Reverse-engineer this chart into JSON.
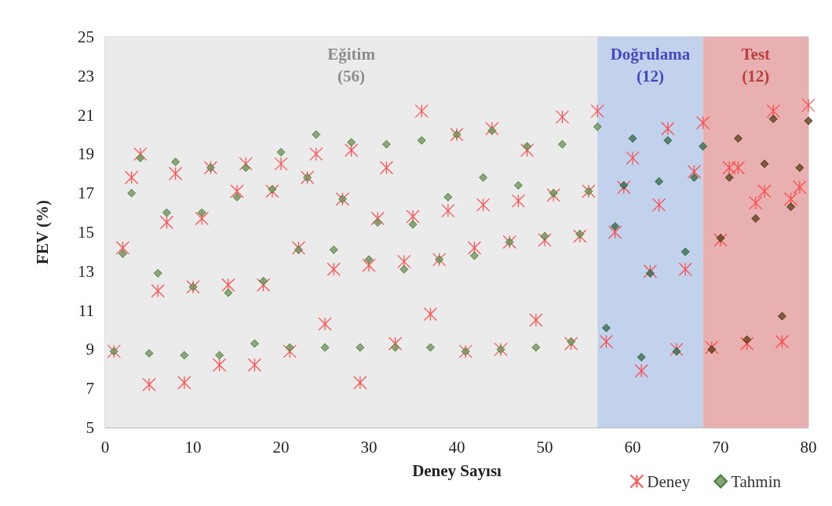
{
  "chart_data": {
    "type": "scatter",
    "xlabel": "Deney Sayısı",
    "ylabel": "FEV (%)",
    "x": [
      1,
      2,
      3,
      4,
      5,
      6,
      7,
      8,
      9,
      10,
      11,
      12,
      13,
      14,
      15,
      16,
      17,
      18,
      19,
      20,
      21,
      22,
      23,
      24,
      25,
      26,
      27,
      28,
      29,
      30,
      31,
      32,
      33,
      34,
      35,
      36,
      37,
      38,
      39,
      40,
      41,
      42,
      43,
      44,
      45,
      46,
      47,
      48,
      49,
      50,
      51,
      52,
      53,
      54,
      55,
      56,
      57,
      58,
      59,
      60,
      61,
      62,
      63,
      64,
      65,
      66,
      67,
      68,
      69,
      70,
      71,
      72,
      73,
      74,
      75,
      76,
      77,
      78,
      79,
      80
    ],
    "series": [
      {
        "name": "Deney",
        "color": "#ff3b3b",
        "marker": "cross",
        "values": [
          8.9,
          14.2,
          17.8,
          19.0,
          7.2,
          12.0,
          15.5,
          18.0,
          7.3,
          12.2,
          15.7,
          18.3,
          8.2,
          12.3,
          17.1,
          18.5,
          8.2,
          12.3,
          17.1,
          18.5,
          8.9,
          14.2,
          17.8,
          19.0,
          10.3,
          13.1,
          16.7,
          19.2,
          7.3,
          13.3,
          15.7,
          18.3,
          9.3,
          13.5,
          15.8,
          21.2,
          10.8,
          13.6,
          16.1,
          20.0,
          8.9,
          14.2,
          16.4,
          20.3,
          9.0,
          14.5,
          16.6,
          19.2,
          10.5,
          14.6,
          16.9,
          20.9,
          9.3,
          14.8,
          17.1,
          21.2,
          9.4,
          15.0,
          17.3,
          18.8,
          7.9,
          13.0,
          16.4,
          20.3,
          9.0,
          13.1,
          18.1,
          20.6,
          9.1,
          14.6,
          18.3,
          18.3,
          9.3,
          16.5,
          17.1,
          21.2,
          9.4,
          16.7,
          17.3,
          21.5
        ]
      },
      {
        "name": "Tahmin",
        "color": "#6b8c55",
        "marker": "diamond",
        "colors": [
          "#77935f",
          "#77935f",
          "#77935f",
          "#77935f",
          "#77935f",
          "#77935f",
          "#77935f",
          "#77935f",
          "#77935f",
          "#77935f",
          "#77935f",
          "#77935f",
          "#77935f",
          "#77935f",
          "#77935f",
          "#77935f",
          "#77935f",
          "#77935f",
          "#77935f",
          "#77935f",
          "#77935f",
          "#77935f",
          "#77935f",
          "#77935f",
          "#77935f",
          "#77935f",
          "#77935f",
          "#77935f",
          "#77935f",
          "#77935f",
          "#77935f",
          "#77935f",
          "#77935f",
          "#77935f",
          "#77935f",
          "#77935f",
          "#77935f",
          "#77935f",
          "#77935f",
          "#77935f",
          "#77935f",
          "#77935f",
          "#77935f",
          "#77935f",
          "#77935f",
          "#77935f",
          "#77935f",
          "#77935f",
          "#77935f",
          "#77935f",
          "#77935f",
          "#77935f",
          "#77935f",
          "#77935f",
          "#77935f",
          "#77935f",
          "#3d6e55",
          "#3d6e55",
          "#3d6e55",
          "#3d6e55",
          "#3d6e55",
          "#3d6e55",
          "#3d6e55",
          "#3d6e55",
          "#3d6e55",
          "#3d6e55",
          "#3d6e55",
          "#3d6e55",
          "#5e4a1e",
          "#5e4a1e",
          "#5e4a1e",
          "#5e4a1e",
          "#5e4a1e",
          "#5e4a1e",
          "#5e4a1e",
          "#5e4a1e",
          "#5e4a1e",
          "#5e4a1e",
          "#5e4a1e",
          "#5e4a1e"
        ],
        "values": [
          8.9,
          13.9,
          17.0,
          18.8,
          8.8,
          12.9,
          16.0,
          18.6,
          8.7,
          12.2,
          16.0,
          18.3,
          8.7,
          11.9,
          16.8,
          18.3,
          9.3,
          12.5,
          17.2,
          19.1,
          9.1,
          14.1,
          17.8,
          20.0,
          9.1,
          14.1,
          16.7,
          19.6,
          9.1,
          13.6,
          15.5,
          19.5,
          9.1,
          13.1,
          15.4,
          19.7,
          9.1,
          13.6,
          16.8,
          20.0,
          8.9,
          13.8,
          17.8,
          20.2,
          9.0,
          14.5,
          17.4,
          19.4,
          9.1,
          14.8,
          17.0,
          19.5,
          9.4,
          14.9,
          17.1,
          20.4,
          10.1,
          15.3,
          17.4,
          19.8,
          8.6,
          12.9,
          17.6,
          19.7,
          8.9,
          14.0,
          17.8,
          19.4,
          9.0,
          14.7,
          17.8,
          19.8,
          9.5,
          15.7,
          18.5,
          20.8,
          10.7,
          16.3,
          18.3,
          20.7
        ]
      }
    ],
    "xlim": [
      0,
      80
    ],
    "xticks": [
      0,
      10,
      20,
      30,
      40,
      50,
      60,
      70,
      80
    ],
    "ylim": [
      5,
      25
    ],
    "yticks": [
      5,
      7,
      9,
      11,
      13,
      15,
      17,
      19,
      21,
      23,
      25
    ],
    "grid": true,
    "legend": "bottom right",
    "bands": [
      {
        "axis": "x",
        "from": 0,
        "to": 56,
        "label": "Eğitim\n(56)",
        "color": "#ebebeb"
      },
      {
        "axis": "x",
        "from": 56,
        "to": 68,
        "label": "Doğrulama\n(12)",
        "color": "#c3d2ec"
      },
      {
        "axis": "x",
        "from": 68,
        "to": 80,
        "label": "Test\n(12)",
        "color": "#e8b0b0"
      }
    ]
  }
}
